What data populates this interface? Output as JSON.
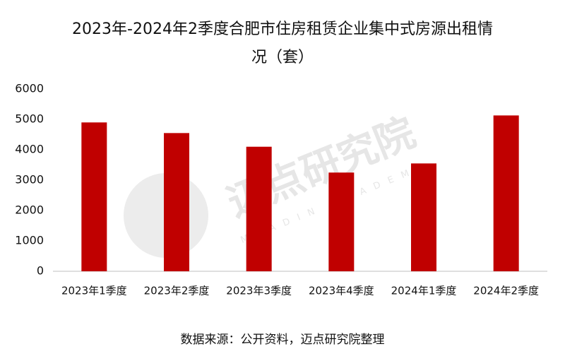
{
  "chart_data": {
    "type": "bar",
    "title": "2023年-2024年2季度合肥市住房租赁企业集中式房源出租情况（套）",
    "categories": [
      "2023年1季度",
      "2023年2季度",
      "2023年3季度",
      "2023年4季度",
      "2024年1季度",
      "2024年2季度"
    ],
    "values": [
      4900,
      4550,
      4100,
      3250,
      3550,
      5130
    ],
    "color": "#c00000",
    "ylim": [
      0,
      6000
    ],
    "yticks": [
      0,
      1000,
      2000,
      3000,
      4000,
      5000,
      6000
    ],
    "grid": false,
    "source": "数据来源：公开资料，迈点研究院整理",
    "watermark": "迈点研究院",
    "watermark_sub": "MEADIN ACADEMY"
  }
}
